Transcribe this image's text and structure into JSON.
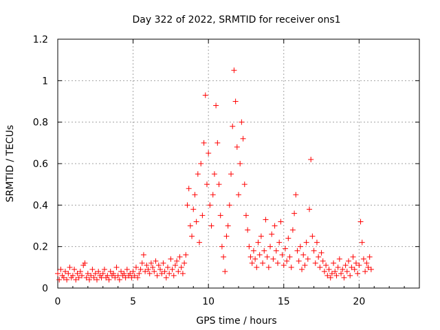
{
  "chart_data": {
    "type": "scatter",
    "title": "Day 322 of 2022, SRMTID for receiver ons1",
    "xlabel": "GPS time / hours",
    "ylabel": "SRMTID / TECUs",
    "xlim": [
      0,
      24
    ],
    "ylim": [
      0,
      1.2
    ],
    "xticks": [
      0,
      5,
      10,
      15,
      20
    ],
    "xtick_labels": [
      "0",
      "5",
      "10",
      "15",
      "20"
    ],
    "yticks": [
      0,
      0.2,
      0.4,
      0.6,
      0.8,
      1.0,
      1.2
    ],
    "ytick_labels": [
      "0",
      "0.2",
      "0.4",
      "0.6",
      "0.8",
      "1",
      "1.2"
    ],
    "grid": true,
    "marker": "+",
    "series": [
      {
        "name": "ons1",
        "color": "#ff0000",
        "points": [
          [
            0.0,
            0.07
          ],
          [
            0.1,
            0.04
          ],
          [
            0.2,
            0.09
          ],
          [
            0.3,
            0.06
          ],
          [
            0.4,
            0.05
          ],
          [
            0.5,
            0.08
          ],
          [
            0.6,
            0.04
          ],
          [
            0.7,
            0.07
          ],
          [
            0.8,
            0.1
          ],
          [
            0.9,
            0.05
          ],
          [
            1.0,
            0.06
          ],
          [
            1.1,
            0.09
          ],
          [
            1.2,
            0.04
          ],
          [
            1.3,
            0.07
          ],
          [
            1.4,
            0.05
          ],
          [
            1.5,
            0.08
          ],
          [
            1.6,
            0.06
          ],
          [
            1.7,
            0.11
          ],
          [
            1.8,
            0.12
          ],
          [
            1.9,
            0.05
          ],
          [
            2.0,
            0.07
          ],
          [
            2.1,
            0.04
          ],
          [
            2.2,
            0.06
          ],
          [
            2.3,
            0.09
          ],
          [
            2.4,
            0.05
          ],
          [
            2.5,
            0.07
          ],
          [
            2.6,
            0.04
          ],
          [
            2.7,
            0.08
          ],
          [
            2.8,
            0.06
          ],
          [
            2.9,
            0.05
          ],
          [
            3.0,
            0.07
          ],
          [
            3.1,
            0.09
          ],
          [
            3.2,
            0.05
          ],
          [
            3.3,
            0.06
          ],
          [
            3.4,
            0.04
          ],
          [
            3.5,
            0.08
          ],
          [
            3.6,
            0.06
          ],
          [
            3.7,
            0.07
          ],
          [
            3.8,
            0.05
          ],
          [
            3.9,
            0.1
          ],
          [
            4.0,
            0.06
          ],
          [
            4.1,
            0.04
          ],
          [
            4.2,
            0.08
          ],
          [
            4.3,
            0.06
          ],
          [
            4.4,
            0.07
          ],
          [
            4.5,
            0.05
          ],
          [
            4.6,
            0.09
          ],
          [
            4.7,
            0.06
          ],
          [
            4.8,
            0.07
          ],
          [
            4.9,
            0.05
          ],
          [
            5.0,
            0.08
          ],
          [
            5.1,
            0.06
          ],
          [
            5.2,
            0.1
          ],
          [
            5.3,
            0.05
          ],
          [
            5.4,
            0.07
          ],
          [
            5.5,
            0.09
          ],
          [
            5.6,
            0.12
          ],
          [
            5.7,
            0.16
          ],
          [
            5.8,
            0.08
          ],
          [
            5.9,
            0.11
          ],
          [
            6.0,
            0.09
          ],
          [
            6.1,
            0.07
          ],
          [
            6.2,
            0.12
          ],
          [
            6.3,
            0.1
          ],
          [
            6.4,
            0.08
          ],
          [
            6.5,
            0.13
          ],
          [
            6.6,
            0.06
          ],
          [
            6.7,
            0.11
          ],
          [
            6.8,
            0.09
          ],
          [
            6.9,
            0.07
          ],
          [
            7.0,
            0.12
          ],
          [
            7.1,
            0.08
          ],
          [
            7.2,
            0.05
          ],
          [
            7.3,
            0.1
          ],
          [
            7.4,
            0.07
          ],
          [
            7.5,
            0.14
          ],
          [
            7.6,
            0.09
          ],
          [
            7.7,
            0.06
          ],
          [
            7.8,
            0.11
          ],
          [
            7.9,
            0.13
          ],
          [
            8.0,
            0.08
          ],
          [
            8.1,
            0.15
          ],
          [
            8.2,
            0.1
          ],
          [
            8.3,
            0.07
          ],
          [
            8.4,
            0.12
          ],
          [
            8.5,
            0.16
          ],
          [
            8.6,
            0.4
          ],
          [
            8.7,
            0.48
          ],
          [
            8.8,
            0.3
          ],
          [
            8.9,
            0.25
          ],
          [
            9.0,
            0.38
          ],
          [
            9.1,
            0.45
          ],
          [
            9.2,
            0.32
          ],
          [
            9.3,
            0.55
          ],
          [
            9.4,
            0.22
          ],
          [
            9.5,
            0.6
          ],
          [
            9.6,
            0.35
          ],
          [
            9.7,
            0.7
          ],
          [
            9.8,
            0.93
          ],
          [
            9.9,
            0.5
          ],
          [
            10.0,
            0.65
          ],
          [
            10.1,
            0.4
          ],
          [
            10.2,
            0.3
          ],
          [
            10.3,
            0.45
          ],
          [
            10.4,
            0.55
          ],
          [
            10.5,
            0.88
          ],
          [
            10.6,
            0.7
          ],
          [
            10.7,
            0.5
          ],
          [
            10.8,
            0.35
          ],
          [
            10.9,
            0.2
          ],
          [
            11.0,
            0.15
          ],
          [
            11.1,
            0.08
          ],
          [
            11.2,
            0.25
          ],
          [
            11.3,
            0.3
          ],
          [
            11.4,
            0.4
          ],
          [
            11.5,
            0.55
          ],
          [
            11.6,
            0.78
          ],
          [
            11.7,
            1.05
          ],
          [
            11.8,
            0.9
          ],
          [
            11.9,
            0.68
          ],
          [
            12.0,
            0.45
          ],
          [
            12.1,
            0.6
          ],
          [
            12.2,
            0.8
          ],
          [
            12.3,
            0.72
          ],
          [
            12.4,
            0.5
          ],
          [
            12.5,
            0.35
          ],
          [
            12.6,
            0.28
          ],
          [
            12.7,
            0.2
          ],
          [
            12.8,
            0.15
          ],
          [
            12.9,
            0.12
          ],
          [
            13.0,
            0.18
          ],
          [
            13.1,
            0.14
          ],
          [
            13.2,
            0.1
          ],
          [
            13.3,
            0.22
          ],
          [
            13.4,
            0.16
          ],
          [
            13.5,
            0.25
          ],
          [
            13.6,
            0.12
          ],
          [
            13.7,
            0.18
          ],
          [
            13.8,
            0.33
          ],
          [
            13.9,
            0.15
          ],
          [
            14.0,
            0.1
          ],
          [
            14.1,
            0.2
          ],
          [
            14.2,
            0.26
          ],
          [
            14.3,
            0.14
          ],
          [
            14.4,
            0.3
          ],
          [
            14.5,
            0.18
          ],
          [
            14.6,
            0.12
          ],
          [
            14.7,
            0.22
          ],
          [
            14.8,
            0.32
          ],
          [
            14.9,
            0.16
          ],
          [
            15.0,
            0.11
          ],
          [
            15.1,
            0.19
          ],
          [
            15.2,
            0.13
          ],
          [
            15.3,
            0.24
          ],
          [
            15.4,
            0.15
          ],
          [
            15.5,
            0.1
          ],
          [
            15.6,
            0.28
          ],
          [
            15.7,
            0.36
          ],
          [
            15.8,
            0.45
          ],
          [
            15.9,
            0.18
          ],
          [
            16.0,
            0.13
          ],
          [
            16.1,
            0.2
          ],
          [
            16.2,
            0.09
          ],
          [
            16.3,
            0.16
          ],
          [
            16.4,
            0.11
          ],
          [
            16.5,
            0.22
          ],
          [
            16.6,
            0.14
          ],
          [
            16.7,
            0.38
          ],
          [
            16.8,
            0.62
          ],
          [
            16.9,
            0.25
          ],
          [
            17.0,
            0.18
          ],
          [
            17.1,
            0.12
          ],
          [
            17.2,
            0.22
          ],
          [
            17.3,
            0.15
          ],
          [
            17.4,
            0.1
          ],
          [
            17.5,
            0.17
          ],
          [
            17.6,
            0.13
          ],
          [
            17.7,
            0.08
          ],
          [
            17.8,
            0.11
          ],
          [
            17.9,
            0.06
          ],
          [
            18.0,
            0.09
          ],
          [
            18.1,
            0.05
          ],
          [
            18.2,
            0.07
          ],
          [
            18.3,
            0.12
          ],
          [
            18.4,
            0.08
          ],
          [
            18.5,
            0.06
          ],
          [
            18.6,
            0.1
          ],
          [
            18.7,
            0.14
          ],
          [
            18.8,
            0.07
          ],
          [
            18.9,
            0.09
          ],
          [
            19.0,
            0.05
          ],
          [
            19.1,
            0.11
          ],
          [
            19.2,
            0.08
          ],
          [
            19.3,
            0.13
          ],
          [
            19.4,
            0.06
          ],
          [
            19.5,
            0.1
          ],
          [
            19.6,
            0.15
          ],
          [
            19.7,
            0.09
          ],
          [
            19.8,
            0.12
          ],
          [
            19.9,
            0.07
          ],
          [
            20.0,
            0.11
          ],
          [
            20.1,
            0.32
          ],
          [
            20.2,
            0.22
          ],
          [
            20.3,
            0.14
          ],
          [
            20.4,
            0.08
          ],
          [
            20.5,
            0.12
          ],
          [
            20.6,
            0.1
          ],
          [
            20.7,
            0.15
          ],
          [
            20.8,
            0.09
          ]
        ]
      }
    ]
  }
}
